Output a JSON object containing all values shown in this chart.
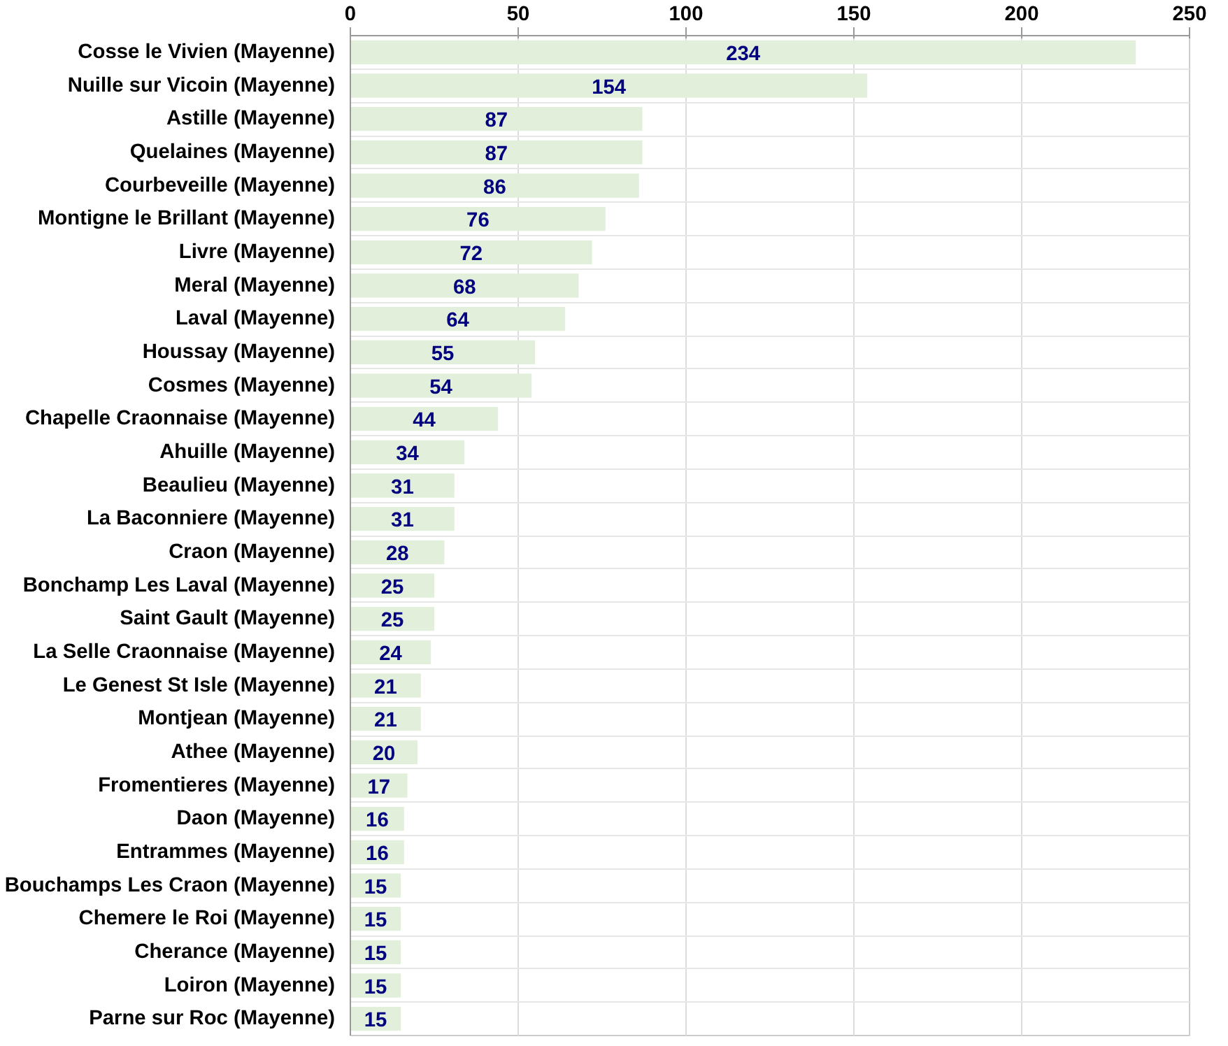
{
  "chart_data": {
    "type": "bar",
    "orientation": "horizontal",
    "data_labels": true,
    "grid": true,
    "color": "#e2efda",
    "xlim": [
      0,
      250
    ],
    "xticks": [
      0,
      50,
      100,
      150,
      200,
      250
    ],
    "categories": [
      "Cosse le Vivien (Mayenne)",
      "Nuille sur Vicoin (Mayenne)",
      "Astille (Mayenne)",
      "Quelaines (Mayenne)",
      "Courbeveille (Mayenne)",
      "Montigne le Brillant (Mayenne)",
      "Livre (Mayenne)",
      "Meral (Mayenne)",
      "Laval (Mayenne)",
      "Houssay (Mayenne)",
      "Cosmes (Mayenne)",
      "Chapelle Craonnaise (Mayenne)",
      "Ahuille (Mayenne)",
      "Beaulieu (Mayenne)",
      "La Baconniere (Mayenne)",
      "Craon (Mayenne)",
      "Bonchamp Les Laval (Mayenne)",
      "Saint Gault (Mayenne)",
      "La Selle Craonnaise (Mayenne)",
      "Le Genest St Isle (Mayenne)",
      "Montjean (Mayenne)",
      "Athee (Mayenne)",
      "Fromentieres (Mayenne)",
      "Daon (Mayenne)",
      "Entrammes (Mayenne)",
      "Bouchamps Les Craon (Mayenne)",
      "Chemere le Roi (Mayenne)",
      "Cherance (Mayenne)",
      "Loiron (Mayenne)",
      "Parne sur Roc (Mayenne)"
    ],
    "values": [
      234,
      154,
      87,
      87,
      86,
      76,
      72,
      68,
      64,
      55,
      54,
      44,
      34,
      31,
      31,
      28,
      25,
      25,
      24,
      21,
      21,
      20,
      17,
      16,
      16,
      15,
      15,
      15,
      15,
      15
    ]
  }
}
